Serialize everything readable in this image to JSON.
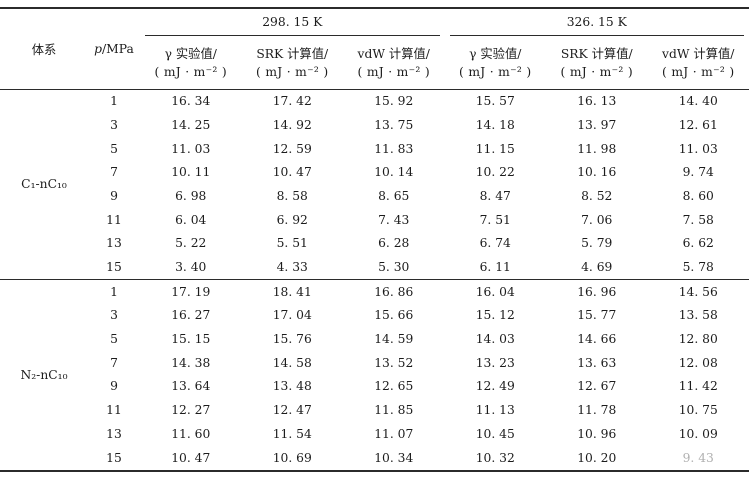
{
  "page": {
    "background": "#ffffff",
    "text_color": "#1c1c1c",
    "rule_color": "#2b2b2b"
  },
  "table": {
    "header": {
      "system": "体系",
      "pressure_symbol": "p",
      "pressure_rest": "/MPa",
      "groups": [
        {
          "temperature": "298. 15 K",
          "columns": [
            {
              "label": "γ 实验值/",
              "unit": "( mJ · m⁻² )"
            },
            {
              "label": "SRK 计算值/",
              "unit": "( mJ · m⁻² )"
            },
            {
              "label": "vdW 计算值/",
              "unit": "( mJ · m⁻² )"
            }
          ]
        },
        {
          "temperature": "326. 15 K",
          "columns": [
            {
              "label": "γ 实验值/",
              "unit": "( mJ · m⁻² )"
            },
            {
              "label": "SRK 计算值/",
              "unit": "( mJ · m⁻² )"
            },
            {
              "label": "vdW 计算值/",
              "unit": "( mJ · m⁻² )"
            }
          ]
        }
      ]
    },
    "sections": [
      {
        "system": "C₁-nC₁₀",
        "rows": [
          {
            "p": "1",
            "g298": "16. 34",
            "srk298": "17. 42",
            "vdw298": "15. 92",
            "g326": "15. 57",
            "srk326": "16. 13",
            "vdw326": "14. 40"
          },
          {
            "p": "3",
            "g298": "14. 25",
            "srk298": "14. 92",
            "vdw298": "13. 75",
            "g326": "14. 18",
            "srk326": "13. 97",
            "vdw326": "12. 61"
          },
          {
            "p": "5",
            "g298": "11. 03",
            "srk298": "12. 59",
            "vdw298": "11. 83",
            "g326": "11. 15",
            "srk326": "11. 98",
            "vdw326": "11. 03"
          },
          {
            "p": "7",
            "g298": "10. 11",
            "srk298": "10. 47",
            "vdw298": "10. 14",
            "g326": "10. 22",
            "srk326": "10. 16",
            "vdw326": "9. 74"
          },
          {
            "p": "9",
            "g298": "6. 98",
            "srk298": "8. 58",
            "vdw298": "8. 65",
            "g326": "8. 47",
            "srk326": "8. 52",
            "vdw326": "8. 60"
          },
          {
            "p": "11",
            "g298": "6. 04",
            "srk298": "6. 92",
            "vdw298": "7. 43",
            "g326": "7. 51",
            "srk326": "7. 06",
            "vdw326": "7. 58"
          },
          {
            "p": "13",
            "g298": "5. 22",
            "srk298": "5. 51",
            "vdw298": "6. 28",
            "g326": "6. 74",
            "srk326": "5. 79",
            "vdw326": "6. 62"
          },
          {
            "p": "15",
            "g298": "3. 40",
            "srk298": "4. 33",
            "vdw298": "5. 30",
            "g326": "6. 11",
            "srk326": "4. 69",
            "vdw326": "5. 78"
          }
        ]
      },
      {
        "system": "N₂-nC₁₀",
        "rows": [
          {
            "p": "1",
            "g298": "17. 19",
            "srk298": "18. 41",
            "vdw298": "16. 86",
            "g326": "16. 04",
            "srk326": "16. 96",
            "vdw326": "14. 56"
          },
          {
            "p": "3",
            "g298": "16. 27",
            "srk298": "17. 04",
            "vdw298": "15. 66",
            "g326": "15. 12",
            "srk326": "15. 77",
            "vdw326": "13. 58"
          },
          {
            "p": "5",
            "g298": "15. 15",
            "srk298": "15. 76",
            "vdw298": "14. 59",
            "g326": "14. 03",
            "srk326": "14. 66",
            "vdw326": "12. 80"
          },
          {
            "p": "7",
            "g298": "14. 38",
            "srk298": "14. 58",
            "vdw298": "13. 52",
            "g326": "13. 23",
            "srk326": "13. 63",
            "vdw326": "12. 08"
          },
          {
            "p": "9",
            "g298": "13. 64",
            "srk298": "13. 48",
            "vdw298": "12. 65",
            "g326": "12. 49",
            "srk326": "12. 67",
            "vdw326": "11. 42"
          },
          {
            "p": "11",
            "g298": "12. 27",
            "srk298": "12. 47",
            "vdw298": "11. 85",
            "g326": "11. 13",
            "srk326": "11. 78",
            "vdw326": "10. 75"
          },
          {
            "p": "13",
            "g298": "11. 60",
            "srk298": "11. 54",
            "vdw298": "11. 07",
            "g326": "10. 45",
            "srk326": "10. 96",
            "vdw326": "10. 09"
          },
          {
            "p": "15",
            "g298": "10. 47",
            "srk298": "10. 69",
            "vdw298": "10. 34",
            "g326": "10. 32",
            "srk326": "10. 20",
            "vdw326": "9. 43",
            "faded_cols": [
              "vdw326"
            ]
          }
        ]
      }
    ]
  }
}
